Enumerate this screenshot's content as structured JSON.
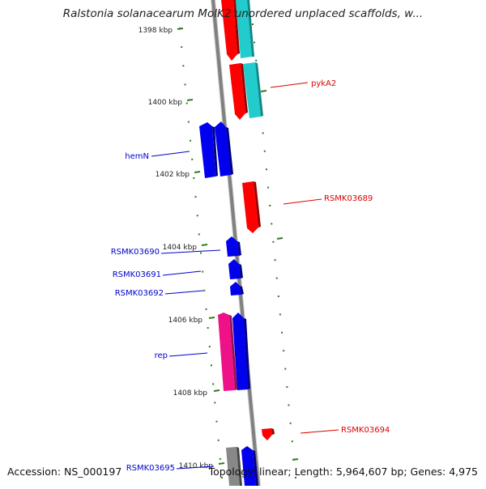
{
  "title": "Ralstonia solanacearum MolK2 unordered unplaced scaffolds, w...",
  "footer": {
    "accession": "Accession: NS_000197",
    "summary": "Topology: linear; Length: 5,964,607 bp; Genes: 4,975"
  },
  "colors": {
    "backbone": "#808080",
    "tick": "#2e7d1e",
    "left_label": "#0000cc",
    "right_label": "#dd0000",
    "red_gene": "#ff0000",
    "blue_gene": "#0000ee",
    "cyan_gene": "#22cccc",
    "pink_gene": "#ee1188",
    "gray_gene": "#888888",
    "lavender_gene": "#8888ee"
  },
  "ticks": [
    {
      "label": "1398 kbp",
      "kbp": 1398
    },
    {
      "label": "1400 kbp",
      "kbp": 1400
    },
    {
      "label": "1402 kbp",
      "kbp": 1402
    },
    {
      "label": "1404 kbp",
      "kbp": 1404
    },
    {
      "label": "1406 kbp",
      "kbp": 1406
    },
    {
      "label": "1408 kbp",
      "kbp": 1408
    },
    {
      "label": "1410 kbp",
      "kbp": 1410
    }
  ],
  "gene_labels": [
    {
      "text": "pykA2",
      "side": "right"
    },
    {
      "text": "hemN",
      "side": "left"
    },
    {
      "text": "RSMK03689",
      "side": "right"
    },
    {
      "text": "RSMK03690",
      "side": "left"
    },
    {
      "text": "RSMK03691",
      "side": "left"
    },
    {
      "text": "RSMK03692",
      "side": "left"
    },
    {
      "text": "rep",
      "side": "left"
    },
    {
      "text": "RSMK03694",
      "side": "right"
    },
    {
      "text": "RSMK03695",
      "side": "left"
    }
  ]
}
